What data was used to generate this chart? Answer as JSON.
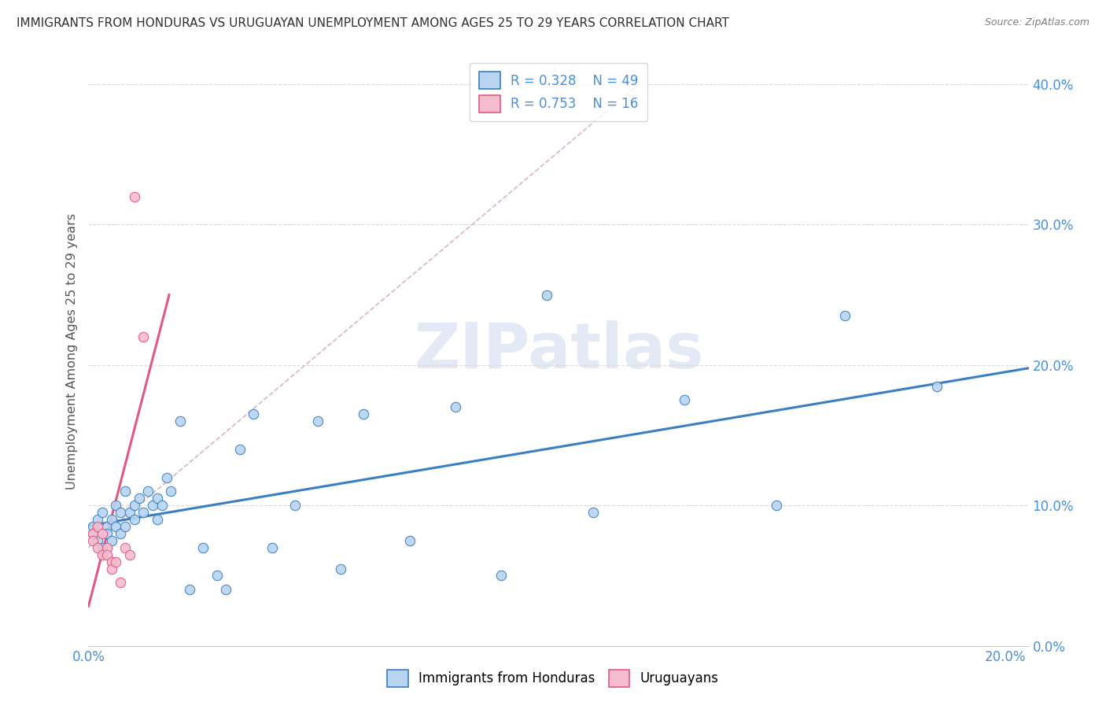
{
  "title": "IMMIGRANTS FROM HONDURAS VS URUGUAYAN UNEMPLOYMENT AMONG AGES 25 TO 29 YEARS CORRELATION CHART",
  "source": "Source: ZipAtlas.com",
  "ylabel": "Unemployment Among Ages 25 to 29 years",
  "legend_blue_r": "R = 0.328",
  "legend_blue_n": "N = 49",
  "legend_pink_r": "R = 0.753",
  "legend_pink_n": "N = 16",
  "watermark_zip": "ZIP",
  "watermark_atlas": "atlas",
  "blue_scatter_x": [
    0.001,
    0.001,
    0.002,
    0.002,
    0.003,
    0.003,
    0.004,
    0.004,
    0.005,
    0.005,
    0.006,
    0.006,
    0.007,
    0.007,
    0.008,
    0.008,
    0.009,
    0.01,
    0.01,
    0.011,
    0.012,
    0.013,
    0.014,
    0.015,
    0.015,
    0.016,
    0.017,
    0.018,
    0.02,
    0.022,
    0.025,
    0.028,
    0.03,
    0.033,
    0.036,
    0.04,
    0.045,
    0.05,
    0.055,
    0.06,
    0.07,
    0.08,
    0.09,
    0.1,
    0.11,
    0.13,
    0.15,
    0.165,
    0.185
  ],
  "blue_scatter_y": [
    0.085,
    0.08,
    0.09,
    0.075,
    0.095,
    0.07,
    0.085,
    0.08,
    0.09,
    0.075,
    0.1,
    0.085,
    0.095,
    0.08,
    0.11,
    0.085,
    0.095,
    0.1,
    0.09,
    0.105,
    0.095,
    0.11,
    0.1,
    0.105,
    0.09,
    0.1,
    0.12,
    0.11,
    0.16,
    0.04,
    0.07,
    0.05,
    0.04,
    0.14,
    0.165,
    0.07,
    0.1,
    0.16,
    0.055,
    0.165,
    0.075,
    0.17,
    0.05,
    0.25,
    0.095,
    0.175,
    0.1,
    0.235,
    0.185
  ],
  "pink_scatter_x": [
    0.001,
    0.001,
    0.002,
    0.002,
    0.003,
    0.003,
    0.004,
    0.004,
    0.005,
    0.005,
    0.006,
    0.007,
    0.008,
    0.009,
    0.01,
    0.012
  ],
  "pink_scatter_y": [
    0.08,
    0.075,
    0.085,
    0.07,
    0.08,
    0.065,
    0.07,
    0.065,
    0.06,
    0.055,
    0.06,
    0.045,
    0.07,
    0.065,
    0.32,
    0.22
  ],
  "blue_color": "#b8d4f0",
  "pink_color": "#f5bcd0",
  "blue_line_color": "#3a7fc1",
  "pink_line_color": "#e05a80",
  "ref_line_color": "#d0a0b0",
  "grid_color": "#d8d8d8",
  "text_color": "#4a90d9",
  "title_color": "#303030",
  "source_color": "#808080",
  "background_color": "#ffffff",
  "xlim": [
    0.0,
    0.205
  ],
  "ylim": [
    0.0,
    0.42
  ],
  "x_ticks": [
    0.0,
    0.02,
    0.04,
    0.06,
    0.08,
    0.1,
    0.12,
    0.14,
    0.16,
    0.18,
    0.2
  ],
  "y_ticks": [
    0.0,
    0.1,
    0.2,
    0.3,
    0.4
  ]
}
